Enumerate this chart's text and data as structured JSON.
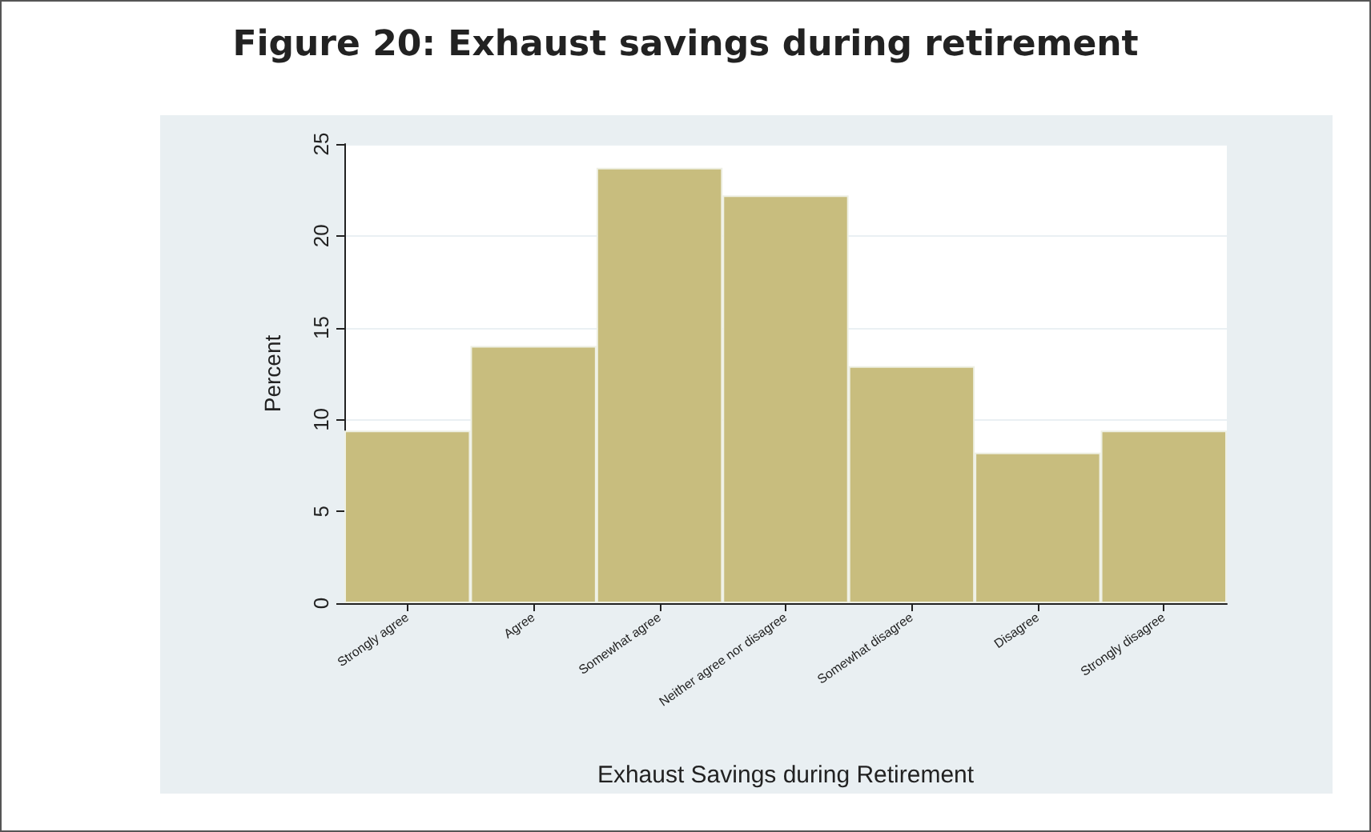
{
  "chart_data": {
    "type": "bar",
    "title": "Figure 20: Exhaust savings during retirement",
    "xlabel": "Exhaust Savings during Retirement",
    "ylabel": "Percent",
    "categories": [
      "Strongly agree",
      "Agree",
      "Somewhat agree",
      "Neither agree nor disagree",
      "Somewhat disagree",
      "Disagree",
      "Strongly disagree"
    ],
    "values": [
      9.4,
      14.0,
      23.7,
      22.2,
      12.9,
      8.2,
      9.4
    ],
    "color": "#c8bd7e",
    "ylim": [
      0,
      25
    ],
    "yticks": [
      0,
      5,
      10,
      15,
      20,
      25
    ],
    "grid": "y"
  }
}
